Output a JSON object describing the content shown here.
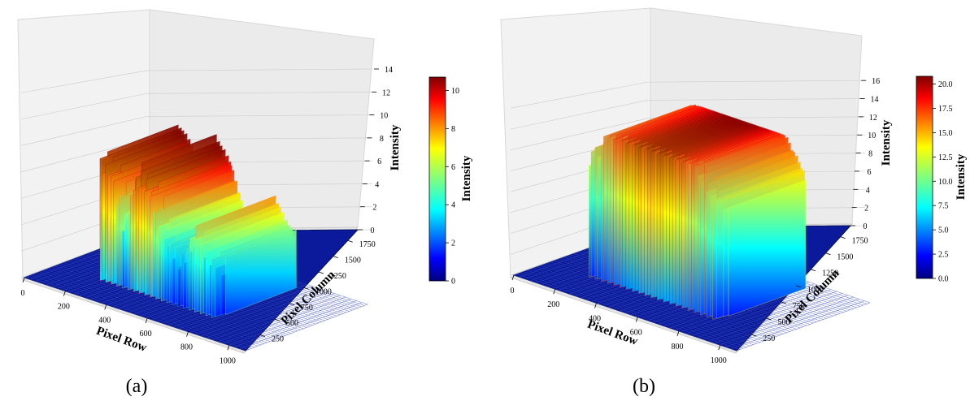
{
  "chart_data": [
    {
      "type": "surface3d",
      "panel_label": "(a)",
      "colormap": "jet",
      "xlabel": "Pixel Row",
      "ylabel": "Pixel Column",
      "zlabel": "Intensity",
      "x_ticks": [
        0,
        200,
        400,
        600,
        800,
        1000
      ],
      "y_ticks": [
        250,
        500,
        750,
        1000,
        1250,
        1500,
        1750
      ],
      "z_ticks": [
        0,
        2,
        4,
        6,
        8,
        10,
        12,
        14
      ],
      "xlim": [
        0,
        1080
      ],
      "ylim": [
        0,
        1920
      ],
      "zlim": [
        0,
        14
      ],
      "colorbar": {
        "label": "Intensity",
        "ticks": [
          "0",
          "2",
          "4",
          "6",
          "8",
          "10"
        ],
        "range": [
          0,
          10.7
        ]
      },
      "surface": {
        "x_range": [
          200,
          780
        ],
        "plateau_intensity_range": [
          2,
          13
        ],
        "stripe_intensity_profile": [
          {
            "x": 220,
            "z": 10.5
          },
          {
            "x": 270,
            "z": 9.5
          },
          {
            "x": 330,
            "z": 5.5
          },
          {
            "x": 390,
            "z": 10.8
          },
          {
            "x": 460,
            "z": 9.0
          },
          {
            "x": 530,
            "z": 5.0
          },
          {
            "x": 600,
            "z": 4.0
          },
          {
            "x": 680,
            "z": 7.0
          },
          {
            "x": 760,
            "z": 4.5
          }
        ]
      }
    },
    {
      "type": "surface3d",
      "panel_label": "(b)",
      "colormap": "jet",
      "xlabel": "Pixel Row",
      "ylabel": "Pixel Column",
      "zlabel": "Intensity",
      "x_ticks": [
        0,
        200,
        400,
        600,
        800,
        1000
      ],
      "y_ticks": [
        250,
        500,
        750,
        1000,
        1250,
        1500,
        1750
      ],
      "z_ticks": [
        0,
        2,
        4,
        6,
        8,
        10,
        12,
        14,
        16
      ],
      "xlim": [
        0,
        1080
      ],
      "ylim": [
        0,
        1920
      ],
      "zlim": [
        0,
        17
      ],
      "colorbar": {
        "label": "Intensity",
        "ticks": [
          "0.0",
          "2.5",
          "5.0",
          "7.5",
          "10.0",
          "12.5",
          "15.0",
          "17.5",
          "20.0"
        ],
        "range": [
          0,
          20.8
        ]
      },
      "surface": {
        "x_range": [
          180,
          820
        ],
        "plateau_intensity_range": [
          3,
          20.8
        ],
        "edge_intensity": 3,
        "peak_intensity": 20.8
      }
    }
  ]
}
